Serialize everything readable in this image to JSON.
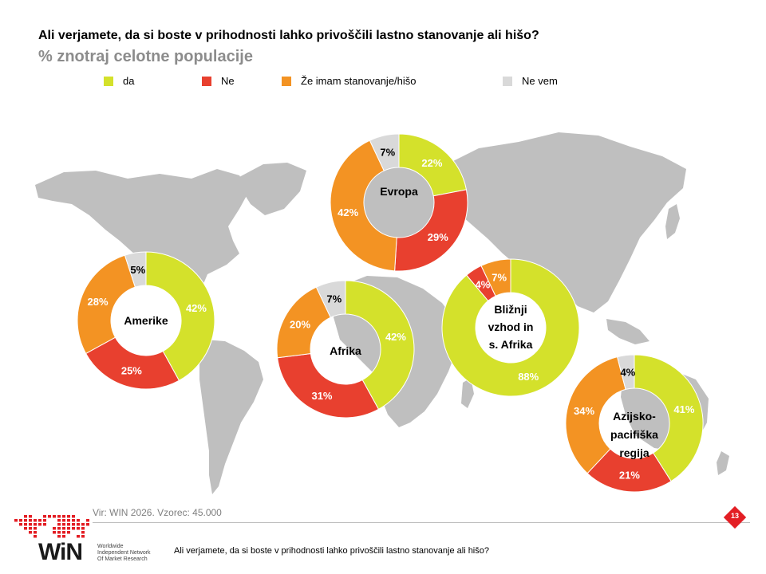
{
  "header": {
    "title": "Ali verjamete, da si boste v prihodnosti lahko privoščili lastno stanovanje ali hišo?",
    "subtitle": "% znotraj celotne populacije"
  },
  "legend": [
    {
      "label": "da",
      "color": "#d4e12b"
    },
    {
      "label": "Ne",
      "color": "#e8402f"
    },
    {
      "label": "Že imam stanovanje/hišo",
      "color": "#f39323"
    },
    {
      "label": "Ne vem",
      "color": "#d9d9d9"
    }
  ],
  "chart_data": {
    "type": "pie",
    "subtype": "donut",
    "title": "Ali verjamete, da si boste v prihodnosti lahko privoščili lastno stanovanje ali hišo?",
    "subtitle": "% znotraj celotne populacije",
    "categories": [
      "da",
      "Ne",
      "Že imam stanovanje/hišo",
      "Ne vem"
    ],
    "colors": [
      "#d4e12b",
      "#e8402f",
      "#f39323",
      "#d9d9d9"
    ],
    "legend_position": "top",
    "series": [
      {
        "name": "Amerike",
        "values": [
          42,
          25,
          28,
          5
        ],
        "labels": [
          "42%",
          "25%",
          "28%",
          "5%"
        ]
      },
      {
        "name": "Evropa",
        "values": [
          22,
          29,
          42,
          7
        ],
        "labels": [
          "22%",
          "29%",
          "42%",
          "7%"
        ]
      },
      {
        "name": "Afrika",
        "values": [
          42,
          31,
          20,
          7
        ],
        "labels": [
          "42%",
          "31%",
          "20%",
          "7%"
        ]
      },
      {
        "name": "Bližnji vzhod in s. Afrika",
        "values": [
          88,
          4,
          7,
          0
        ],
        "labels": [
          "88%",
          "4%",
          "7%",
          ""
        ]
      },
      {
        "name": "Azijsko-pacifiška regija",
        "values": [
          41,
          21,
          34,
          4
        ],
        "labels": [
          "41%",
          "21%",
          "34%",
          "4%"
        ]
      }
    ]
  },
  "footer": {
    "source": "Vir: WIN 2026.  Vzorec: 45.000",
    "question": "Ali verjamete, da si boste v prihodnosti lahko privoščili lastno stanovanje ali hišo?",
    "page_number": "13",
    "badge_color": "#e31e24",
    "logo_text": "WiN",
    "logo_lines": [
      "Worldwide",
      "Independent Network",
      "Of Market Research"
    ]
  }
}
